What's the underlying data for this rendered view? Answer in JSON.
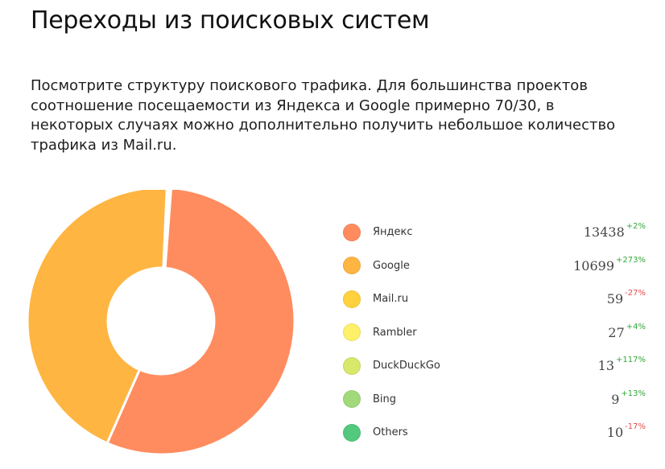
{
  "page": {
    "title": "Переходы из поисковых систем",
    "description": "Посмотрите структуру поискового трафика. Для большинства проектов соотношение посещаемости из Яндекса и Google примерно 70/30,  в некоторых случаях можно дополнительно получить небольшое количество трафика из Mail.ru."
  },
  "chart_data": {
    "type": "pie",
    "variant": "donut",
    "categories": [
      "Яндекс",
      "Google",
      "Mail.ru",
      "Rambler",
      "DuckDuckGo",
      "Bing",
      "Others"
    ],
    "values": [
      13438,
      10699,
      59,
      27,
      13,
      9,
      10
    ],
    "changes": [
      "+2%",
      "+273%",
      "-27%",
      "+4%",
      "+117%",
      "+13%",
      "-17%"
    ],
    "colors": [
      "#ff8c5f",
      "#ffb542",
      "#ffd23d",
      "#fff06a",
      "#d8e86a",
      "#a2d97a",
      "#52c97d"
    ],
    "legend_position": "right"
  }
}
